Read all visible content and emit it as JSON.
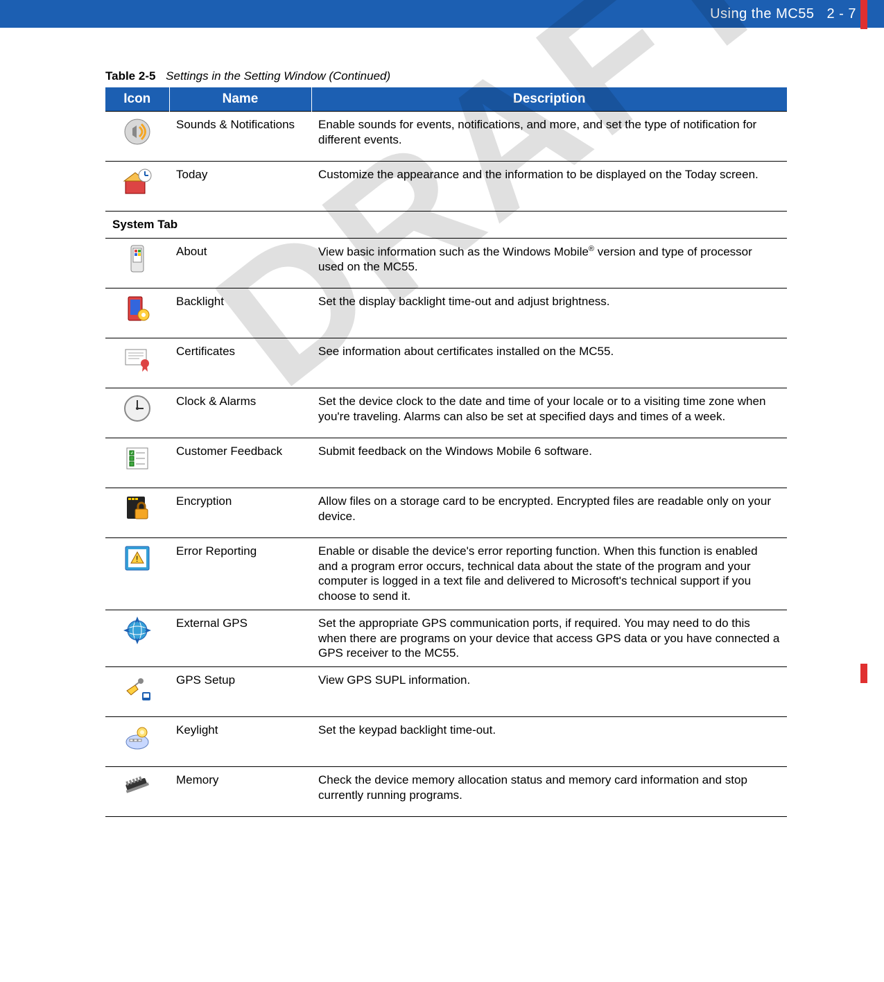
{
  "header": {
    "title": "Using the MC55",
    "page": "2 - 7",
    "bg_color": "#1c5fb2",
    "tab_color": "#e03030"
  },
  "watermark": "DRAFT",
  "table": {
    "caption_label": "Table 2-5",
    "caption_title": "Settings in the Setting Window (Continued)",
    "header_bg": "#1c5fb2",
    "columns": [
      "Icon",
      "Name",
      "Description"
    ],
    "rows": [
      {
        "type": "row",
        "icon": "sounds",
        "name": "Sounds & Notifications",
        "desc": "Enable sounds for events, notifications, and more, and set the type of notification for different events."
      },
      {
        "type": "row",
        "icon": "today",
        "name": "Today",
        "desc": "Customize the appearance and the information to be displayed on the Today screen."
      },
      {
        "type": "section",
        "label": "System Tab"
      },
      {
        "type": "row",
        "icon": "about",
        "name": "About",
        "desc_html": "View basic information such as the Windows Mobile<sup class=\"sup\">®</sup> version and type of processor used on the MC55."
      },
      {
        "type": "row",
        "icon": "backlight",
        "name": "Backlight",
        "desc": "Set the display backlight time-out and adjust brightness."
      },
      {
        "type": "row",
        "icon": "certificates",
        "name": "Certificates",
        "desc": "See information about certificates installed on the MC55."
      },
      {
        "type": "row",
        "icon": "clock",
        "name": "Clock & Alarms",
        "desc": "Set the device clock to the date and time of your locale or to a visiting time zone when you're traveling. Alarms can also be set at specified days and times of a week."
      },
      {
        "type": "row",
        "icon": "feedback",
        "name": "Customer Feedback",
        "desc": "Submit feedback on the Windows Mobile 6 software."
      },
      {
        "type": "row",
        "icon": "encryption",
        "name": "Encryption",
        "desc": "Allow files on a storage card to be encrypted. Encrypted files are readable only on your device."
      },
      {
        "type": "row",
        "icon": "error",
        "name": "Error Reporting",
        "desc": "Enable or disable the device's error reporting function. When this function is enabled and a program error occurs, technical data about the state of the program and your computer is logged in a text file and delivered to Microsoft's technical support if you choose to send it."
      },
      {
        "type": "row",
        "icon": "extgps",
        "name": "External GPS",
        "desc": "Set the appropriate GPS communication ports, if required. You may need to do this when there are programs on your device that access GPS data or you have connected a GPS receiver to the MC55."
      },
      {
        "type": "row",
        "icon": "gpssetup",
        "name": "GPS Setup",
        "desc": "View GPS SUPL information."
      },
      {
        "type": "row",
        "icon": "keylight",
        "name": "Keylight",
        "desc": "Set the keypad backlight time-out."
      },
      {
        "type": "row",
        "icon": "memory",
        "name": "Memory",
        "desc": "Check the device memory allocation status and memory card information and stop currently running programs."
      }
    ]
  },
  "icons_svg": {
    "sounds": "<svg viewBox='0 0 46 46'><circle cx='23' cy='23' r='18' fill='#d8d8d8' stroke='#888'/><path d='M16 18 L22 14 L22 32 L16 28 Z' fill='#888'/><path d='M26 16 Q34 23 26 30' stroke='#f5a623' stroke-width='3' fill='none'/><path d='M29 12 Q40 23 29 34' stroke='#f5a623' stroke-width='3' fill='none'/></svg>",
    "today": "<svg viewBox='0 0 46 46'><rect x='6' y='22' width='28' height='18' fill='#d44' stroke='#800'/><polygon points='4,22 20,10 36,22' fill='#f8c050' stroke='#a06000'/><circle cx='34' cy='14' r='9' fill='#fff' stroke='#888'/><line x1='34' y1='14' x2='34' y2='8' stroke='#1c5fb2' stroke-width='2'/><line x1='34' y1='14' x2='39' y2='14' stroke='#1c5fb2' stroke-width='2'/></svg>",
    "about": "<svg viewBox='0 0 46 46'><rect x='14' y='4' width='18' height='38' rx='3' fill='#e8e8e8' stroke='#888'/><rect x='17' y='8' width='12' height='20' fill='#fff' stroke='#888'/><rect x='19' y='10' width='4' height='4' fill='#d44'/><rect x='24' y='10' width='4' height='4' fill='#3a3'/><rect x='19' y='15' width='4' height='4' fill='#36d'/><rect x='24' y='15' width='4' height='4' fill='#fc0'/></svg>",
    "backlight": "<svg viewBox='0 0 46 46'><rect x='10' y='6' width='20' height='34' rx='2' fill='#d44' stroke='#800'/><rect x='13' y='10' width='14' height='22' fill='#36d'/><circle cx='32' cy='32' r='8' fill='#ffd040' stroke='#c08000'/><circle cx='32' cy='32' r='3' fill='#fff'/></svg>",
    "certificates": "<svg viewBox='0 0 46 46'><rect x='6' y='10' width='30' height='22' fill='#fff' stroke='#888'/><line x1='10' y1='15' x2='32' y2='15' stroke='#aaa'/><line x1='10' y1='19' x2='32' y2='19' stroke='#aaa'/><line x1='10' y1='23' x2='26' y2='23' stroke='#aaa'/><circle cx='34' cy='30' r='6' fill='#d44'/><path d='M31 34 L30 42 L34 38 L38 42 L37 34' fill='#d44'/></svg>",
    "clock": "<svg viewBox='0 0 46 46'><circle cx='23' cy='23' r='18' fill='#f0f0f0' stroke='#888' stroke-width='2'/><circle cx='23' cy='23' r='2' fill='#333'/><line x1='23' y1='23' x2='23' y2='11' stroke='#333' stroke-width='2'/><line x1='23' y1='23' x2='32' y2='23' stroke='#333' stroke-width='2'/></svg>",
    "feedback": "<svg viewBox='0 0 46 46'><rect x='8' y='8' width='30' height='30' fill='#fff' stroke='#888'/><rect x='12' y='12' width='6' height='6' fill='#4a4' stroke='#060'/><text x='13' y='17' font-size='6' fill='#fff'>✓</text><rect x='12' y='20' width='6' height='6' fill='#4a4' stroke='#060'/><rect x='12' y='28' width='6' height='6' fill='#4a4' stroke='#060'/><line x1='21' y1='15' x2='34' y2='15' stroke='#888'/><line x1='21' y1='23' x2='34' y2='23' stroke='#888'/><line x1='21' y1='31' x2='34' y2='31' stroke='#888'/></svg>",
    "encryption": "<svg viewBox='0 0 46 46'><rect x='8' y='6' width='26' height='32' rx='2' fill='#222'/><rect x='10' y='8' width='4' height='3' fill='#fc0'/><rect x='15' y='8' width='4' height='3' fill='#fc0'/><rect x='20' y='8' width='4' height='3' fill='#fc0'/><rect x='20' y='24' width='18' height='14' rx='2' fill='#f5a623' stroke='#a06000'/><path d='M24 24 v-4 a5 5 0 0 1 10 0 v4' stroke='#a06000' stroke-width='3' fill='none'/></svg>",
    "error": "<svg viewBox='0 0 46 46'><rect x='6' y='6' width='34' height='34' rx='2' fill='#36a0d8' stroke='#1c5fb2'/><rect x='10' y='10' width='26' height='26' fill='#fff'/><polygon points='23,14 32,30 14,30' fill='#ffd040' stroke='#a06000'/><text x='21' y='28' font-size='12' fill='#000'>!</text></svg>",
    "extgps": "<svg viewBox='0 0 46 46'><circle cx='23' cy='23' r='14' fill='#36a0d8' stroke='#1c5fb2'/><ellipse cx='23' cy='23' rx='14' ry='6' fill='none' stroke='#fff'/><ellipse cx='23' cy='23' rx='6' ry='14' fill='none' stroke='#fff'/><polygon points='23,3 27,13 23,10 19,13' fill='#1c5fb2'/><polygon points='23,43 27,33 23,36 19,33' fill='#1c5fb2'/><polygon points='3,23 13,27 10,23 13,19' fill='#1c5fb2'/><polygon points='43,23 33,27 36,23 33,19' fill='#1c5fb2'/></svg>",
    "gpssetup": "<svg viewBox='0 0 46 46'><polygon points='8,28 20,20 24,26 14,34' fill='#ffd040' stroke='#a06000'/><circle cx='28' cy='14' r='4' fill='#888'/><line x1='20' y1='20' x2='28' y2='14' stroke='#888' stroke-width='2'/><rect x='30' y='30' width='12' height='12' rx='2' fill='#1c5fb2'/><rect x='32' y='32' width='8' height='6' fill='#fff'/></svg>",
    "keylight": "<svg viewBox='0 0 46 46'><ellipse cx='23' cy='30' rx='16' ry='10' fill='#c8d8ff' stroke='#6080c0'/><rect x='12' y='26' width='5' height='3' fill='#fff' stroke='#888'/><rect x='18' y='26' width='5' height='3' fill='#fff' stroke='#888'/><rect x='24' y='26' width='5' height='3' fill='#fff' stroke='#888'/><circle cx='30' cy='16' r='7' fill='#ffe070' stroke='#c08000'/><circle cx='30' cy='16' r='3' fill='#fff8d0'/></svg>",
    "memory": "<svg viewBox='0 0 46 46'><g transform='rotate(-20 23 23)'><rect x='8' y='14' width='30' height='12' rx='2' fill='#333'/><rect x='6' y='22' width='34' height='4' fill='#888'/><rect x='10' y='10' width='3' height='6' fill='#888'/><rect x='15' y='10' width='3' height='6' fill='#888'/><rect x='20' y='10' width='3' height='6' fill='#888'/><rect x='25' y='10' width='3' height='6' fill='#888'/><rect x='30' y='10' width='3' height='6' fill='#888'/></g></svg>"
  }
}
